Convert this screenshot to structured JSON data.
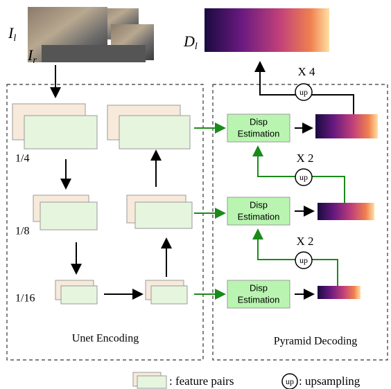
{
  "inputs": {
    "left": "I",
    "left_sub": "l",
    "right": "I",
    "right_sub": "r"
  },
  "output": {
    "label": "D",
    "sub": "l"
  },
  "scales": [
    "1/4",
    "1/8",
    "1/16"
  ],
  "sections": {
    "encoder": "Unet Encoding",
    "decoder": "Pyramid Decoding"
  },
  "disp_blocks": [
    [
      "Disp",
      "Estimation"
    ],
    [
      "Disp",
      "Estimation"
    ],
    [
      "Disp",
      "Estimation"
    ]
  ],
  "upsample_factors": [
    "X 4",
    "X 2",
    "X 2"
  ],
  "up_label": "up",
  "legend": {
    "feature_pairs": ": feature pairs",
    "upsampling": ": upsampling"
  }
}
